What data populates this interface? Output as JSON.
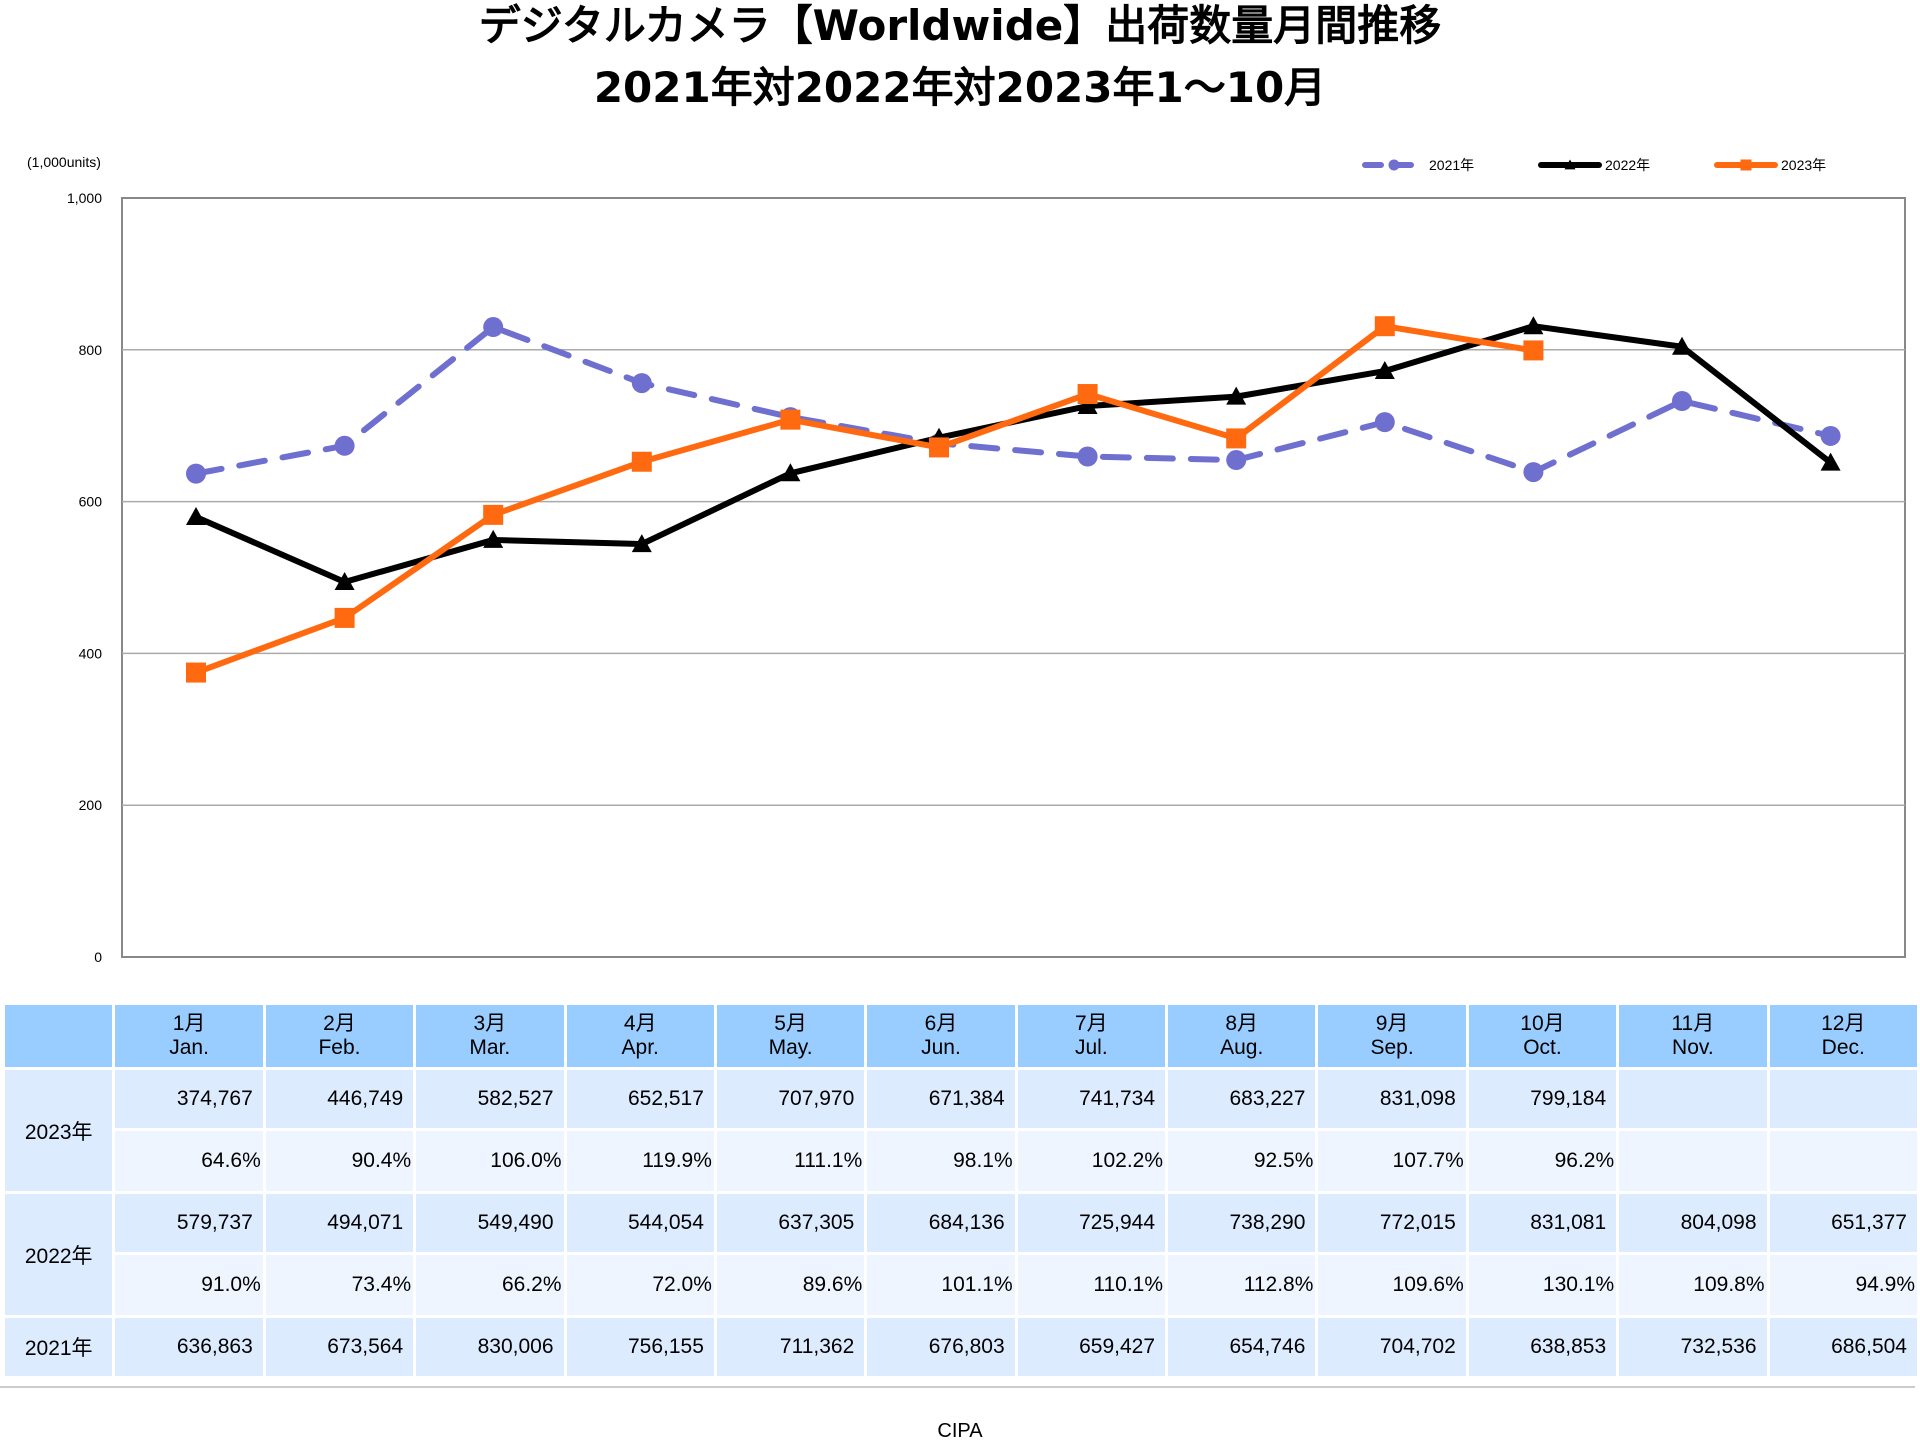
{
  "title": {
    "line1": "デジタルカメラ【Worldwide】出荷数量月間推移",
    "line2": "2021年対2022年対2023年1～10月"
  },
  "chart_data": {
    "type": "line",
    "title": "デジタルカメラ【Worldwide】出荷数量月間推移 2021年対2022年対2023年1～10月",
    "ylabel": "(1,000units)",
    "xlabel": "",
    "ylim": [
      0,
      1000
    ],
    "yticks": [
      "0",
      "200",
      "400",
      "600",
      "800",
      "1,000"
    ],
    "ytick_values": [
      0,
      200,
      400,
      600,
      800,
      1000
    ],
    "grid": true,
    "legend_position": "top-right",
    "categories": [
      "1月",
      "2月",
      "3月",
      "4月",
      "5月",
      "6月",
      "7月",
      "8月",
      "9月",
      "10月",
      "11月",
      "12月"
    ],
    "series": [
      {
        "name": "2021年",
        "color": "#6f6fcf",
        "marker": "circle",
        "dash": true,
        "values": [
          636.863,
          673.564,
          830.006,
          756.155,
          711.362,
          676.803,
          659.427,
          654.746,
          704.702,
          638.853,
          732.536,
          686.504
        ]
      },
      {
        "name": "2022年",
        "color": "#000000",
        "marker": "triangle",
        "dash": false,
        "values": [
          579.737,
          494.071,
          549.49,
          544.054,
          637.305,
          684.136,
          725.944,
          738.29,
          772.015,
          831.081,
          804.098,
          651.377
        ]
      },
      {
        "name": "2023年",
        "color": "#ff6a10",
        "marker": "square",
        "dash": false,
        "values": [
          374.767,
          446.749,
          582.527,
          652.517,
          707.97,
          671.384,
          741.734,
          683.227,
          831.098,
          799.184,
          null,
          null
        ]
      }
    ]
  },
  "table": {
    "months": [
      {
        "jp": "1月",
        "en": "Jan."
      },
      {
        "jp": "2月",
        "en": "Feb."
      },
      {
        "jp": "3月",
        "en": "Mar."
      },
      {
        "jp": "4月",
        "en": "Apr."
      },
      {
        "jp": "5月",
        "en": "May."
      },
      {
        "jp": "6月",
        "en": "Jun."
      },
      {
        "jp": "7月",
        "en": "Jul."
      },
      {
        "jp": "8月",
        "en": "Aug."
      },
      {
        "jp": "9月",
        "en": "Sep."
      },
      {
        "jp": "10月",
        "en": "Oct."
      },
      {
        "jp": "11月",
        "en": "Nov."
      },
      {
        "jp": "12月",
        "en": "Dec."
      }
    ],
    "rows": [
      {
        "year": "2023年",
        "units": [
          "374,767",
          "446,749",
          "582,527",
          "652,517",
          "707,970",
          "671,384",
          "741,734",
          "683,227",
          "831,098",
          "799,184",
          "",
          ""
        ],
        "ratio": [
          "64.6%",
          "90.4%",
          "106.0%",
          "119.9%",
          "111.1%",
          "98.1%",
          "102.2%",
          "92.5%",
          "107.7%",
          "96.2%",
          "",
          ""
        ]
      },
      {
        "year": "2022年",
        "units": [
          "579,737",
          "494,071",
          "549,490",
          "544,054",
          "637,305",
          "684,136",
          "725,944",
          "738,290",
          "772,015",
          "831,081",
          "804,098",
          "651,377"
        ],
        "ratio": [
          "91.0%",
          "73.4%",
          "66.2%",
          "72.0%",
          "89.6%",
          "101.1%",
          "110.1%",
          "112.8%",
          "109.6%",
          "130.1%",
          "109.8%",
          "94.9%"
        ]
      },
      {
        "year": "2021年",
        "units": [
          "636,863",
          "673,564",
          "830,006",
          "756,155",
          "711,362",
          "676,803",
          "659,427",
          "654,746",
          "704,702",
          "638,853",
          "732,536",
          "686,504"
        ]
      }
    ]
  },
  "source": "CIPA"
}
